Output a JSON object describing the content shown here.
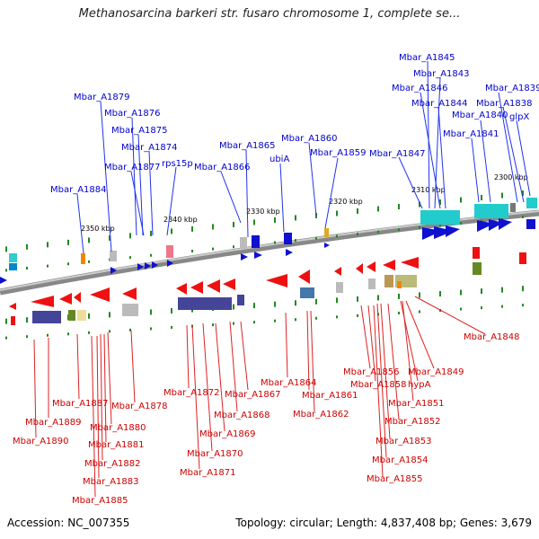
{
  "title": "Methanosarcina barkeri str. fusaro chromosome 1, complete se...",
  "accession": "Accession: NC_007355",
  "summary": "Topology: circular; Length: 4,837,408 bp; Genes: 3,679",
  "ticks": [
    "2350 kbp",
    "2340 kbp",
    "2330 kbp",
    "2320 kbp",
    "2310 kbp",
    "2300 kbp"
  ],
  "top_labels": [
    "Mbar_A1845",
    "Mbar_A1843",
    "Mbar_A1846",
    "Mbar_A1839",
    "Mbar_A1844",
    "Mbar_A1838",
    "Mbar_A1840",
    "glpX",
    "Mbar_A1841",
    "Mbar_A1847",
    "Mbar_A1879",
    "Mbar_A1876",
    "Mbar_A1875",
    "Mbar_A1874",
    "Mbar_A1877",
    "rps15p",
    "Mbar_A1884",
    "Mbar_A1865",
    "Mbar_A1866",
    "Mbar_A1860",
    "ubiA",
    "Mbar_A1859"
  ],
  "bottom_labels": [
    "Mbar_A1848",
    "Mbar_A1849",
    "hypA",
    "Mbar_A1856",
    "Mbar_A1858",
    "Mbar_A1851",
    "Mbar_A1852",
    "Mbar_A1853",
    "Mbar_A1854",
    "Mbar_A1855",
    "Mbar_A1864",
    "Mbar_A1861",
    "Mbar_A1862",
    "Mbar_A1872",
    "Mbar_A1867",
    "Mbar_A1868",
    "Mbar_A1869",
    "Mbar_A1870",
    "Mbar_A1871",
    "Mbar_A1887",
    "Mbar_A1878",
    "Mbar_A1889",
    "Mbar_A1880",
    "Mbar_A1890",
    "Mbar_A1881",
    "Mbar_A1882",
    "Mbar_A1883",
    "Mbar_A1885"
  ]
}
